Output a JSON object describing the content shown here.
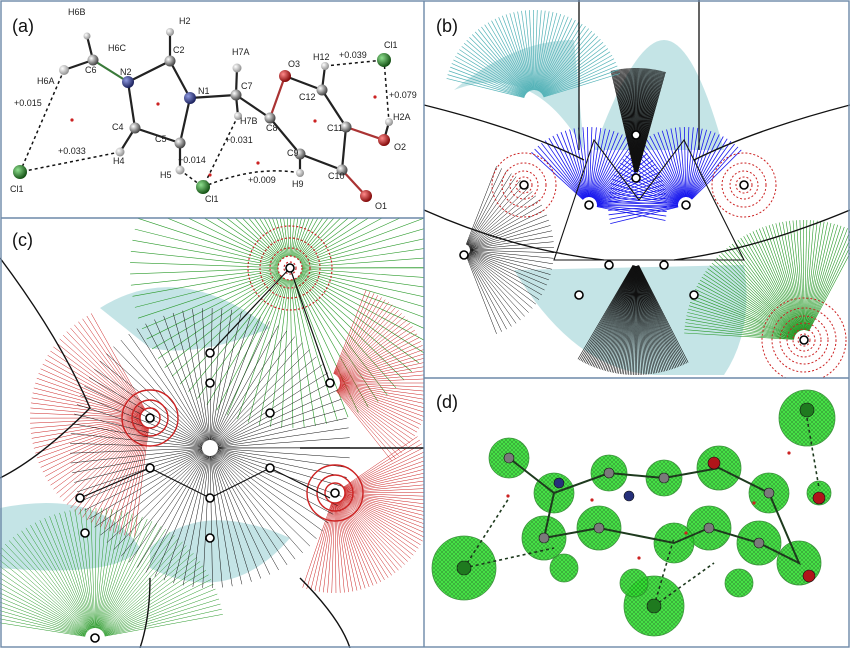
{
  "panels": {
    "a": {
      "label": "(a)"
    },
    "b": {
      "label": "(b)"
    },
    "c": {
      "label": "(c)"
    },
    "d": {
      "label": "(d)"
    }
  },
  "molecule": {
    "atoms": {
      "h6b": "H6B",
      "h6c": "H6C",
      "c6": "C6",
      "h6a": "H6A",
      "n2": "N2",
      "c2": "C2",
      "h2": "H2",
      "n1": "N1",
      "c4": "C4",
      "c5": "C5",
      "h4": "H4",
      "h5": "H5",
      "h7a": "H7A",
      "c7": "C7",
      "h7b": "H7B",
      "o3": "O3",
      "c8": "C8",
      "c12": "C12",
      "h12": "H12",
      "c11": "C11",
      "c9": "C9",
      "h9": "H9",
      "c10": "C10",
      "o1": "O1",
      "o2": "O2",
      "h2a": "H2A",
      "cl1_left": "Cl1",
      "cl1_bottom": "Cl1",
      "cl1_topright": "Cl1"
    },
    "contacts": {
      "h6a_cl1": "+0.015",
      "h4_cl1": "+0.033",
      "h5_cl1": "+0.014",
      "h7b_cl1": "+0.031",
      "h9_cl1": "+0.009",
      "h12_cl1": "+0.039",
      "h2a_cl1": "+0.079"
    }
  },
  "colors": {
    "frame": "#6d89a8",
    "positive_contour": "#cc2222",
    "negative_contour": "#2a9a2a",
    "gradient_black": "#111111",
    "gradient_blue": "#1a1aee",
    "gradient_cyan": "#55b3b8",
    "chlorine": "#1f7a1f",
    "nitrogen": "#26307a",
    "oxygen": "#b0141a",
    "carbon": "#7a7a7a",
    "hydrogen": "#d8d8d8",
    "surface": "#33dd33"
  }
}
